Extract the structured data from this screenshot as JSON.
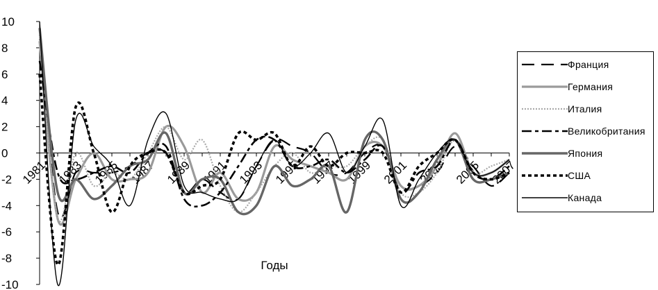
{
  "chart_data": {
    "type": "line",
    "xlabel": "Годы",
    "ylabel": "",
    "ylim": [
      -10,
      10
    ],
    "yticks": [
      10,
      8,
      6,
      4,
      2,
      0,
      -2,
      -4,
      -6,
      -8,
      -10
    ],
    "x": [
      1981,
      1982,
      1983,
      1984,
      1985,
      1986,
      1987,
      1988,
      1989,
      1990,
      1991,
      1992,
      1993,
      1994,
      1995,
      1996,
      1997,
      1998,
      1999,
      2000,
      2001,
      2002,
      2003,
      2004,
      2005,
      2006,
      2007
    ],
    "xtick_labels": [
      "1981",
      "1983",
      "1985",
      "1987",
      "1989",
      "1991",
      "1993",
      "1995",
      "1997",
      "1999",
      "2001",
      "2003",
      "2005",
      "2007"
    ],
    "series": [
      {
        "name": "Франция",
        "color": "#000000",
        "values": [
          9.5,
          -4.5,
          -1.5,
          -1.5,
          -1.5,
          -1.0,
          0.0,
          0.0,
          -3.0,
          -2.0,
          -3.0,
          -3.5,
          -1.0,
          1.0,
          0.5,
          0.0,
          -1.5,
          -1.5,
          0.0,
          0.5,
          -2.5,
          -2.5,
          -1.5,
          0.5,
          -1.0,
          -2.5,
          -1.5
        ]
      },
      {
        "name": "Германия",
        "color": "#9a9a9a",
        "values": [
          8.5,
          -5.0,
          -2.0,
          0.0,
          -2.0,
          -2.0,
          -1.5,
          2.0,
          0.5,
          -3.0,
          -1.5,
          -3.5,
          -3.0,
          0.5,
          -0.5,
          -1.0,
          -1.5,
          -2.0,
          0.5,
          0.5,
          -2.5,
          -2.5,
          -1.0,
          1.5,
          -1.5,
          -1.5,
          -0.5
        ]
      },
      {
        "name": "Италия",
        "color": "#aaaaaa",
        "values": [
          9.0,
          -5.0,
          0.0,
          -2.5,
          -1.5,
          -2.0,
          0.0,
          2.0,
          -0.5,
          1.0,
          -2.5,
          -4.5,
          -3.0,
          -1.0,
          0.0,
          -1.5,
          -1.0,
          -1.0,
          0.5,
          1.0,
          -3.0,
          -3.0,
          -1.5,
          1.0,
          -1.5,
          -1.0,
          -0.5
        ]
      },
      {
        "name": "Великобритания",
        "color": "#000000",
        "values": [
          7.0,
          -1.5,
          -2.0,
          -1.5,
          -1.0,
          -1.5,
          0.0,
          0.5,
          -3.5,
          -4.0,
          -3.0,
          -1.0,
          1.0,
          1.0,
          -1.0,
          -1.0,
          -0.5,
          -1.5,
          -0.5,
          0.5,
          -3.0,
          -1.5,
          -1.0,
          1.0,
          -1.5,
          -2.0,
          -1.0
        ]
      },
      {
        "name": "Япония",
        "color": "#666666",
        "values": [
          9.5,
          -3.0,
          -2.0,
          -3.5,
          -2.5,
          -1.0,
          -0.5,
          1.5,
          -3.0,
          -2.0,
          -2.0,
          -4.5,
          -4.0,
          -1.0,
          -2.5,
          -2.0,
          -1.0,
          -4.5,
          1.0,
          1.0,
          -3.5,
          -3.0,
          -0.5,
          1.0,
          -2.0,
          -2.0,
          -1.5
        ]
      },
      {
        "name": "США",
        "color": "#000000",
        "values": [
          6.0,
          -8.5,
          3.5,
          0.0,
          -4.5,
          -1.0,
          0.0,
          0.0,
          -3.0,
          -2.5,
          -2.0,
          1.5,
          1.0,
          1.5,
          -1.0,
          0.5,
          -1.0,
          0.0,
          0.0,
          0.0,
          -3.0,
          -1.0,
          0.0,
          1.0,
          -1.5,
          -2.0,
          -1.5
        ]
      },
      {
        "name": "Канада",
        "color": "#000000",
        "values": [
          10.0,
          -10.0,
          2.5,
          0.5,
          -1.0,
          -4.0,
          1.0,
          3.0,
          -2.5,
          -3.0,
          -3.5,
          -3.5,
          -1.0,
          1.0,
          -1.0,
          0.0,
          1.5,
          -1.5,
          0.5,
          2.5,
          -4.0,
          -2.0,
          0.0,
          1.0,
          -1.5,
          -1.5,
          -0.5
        ]
      }
    ]
  }
}
